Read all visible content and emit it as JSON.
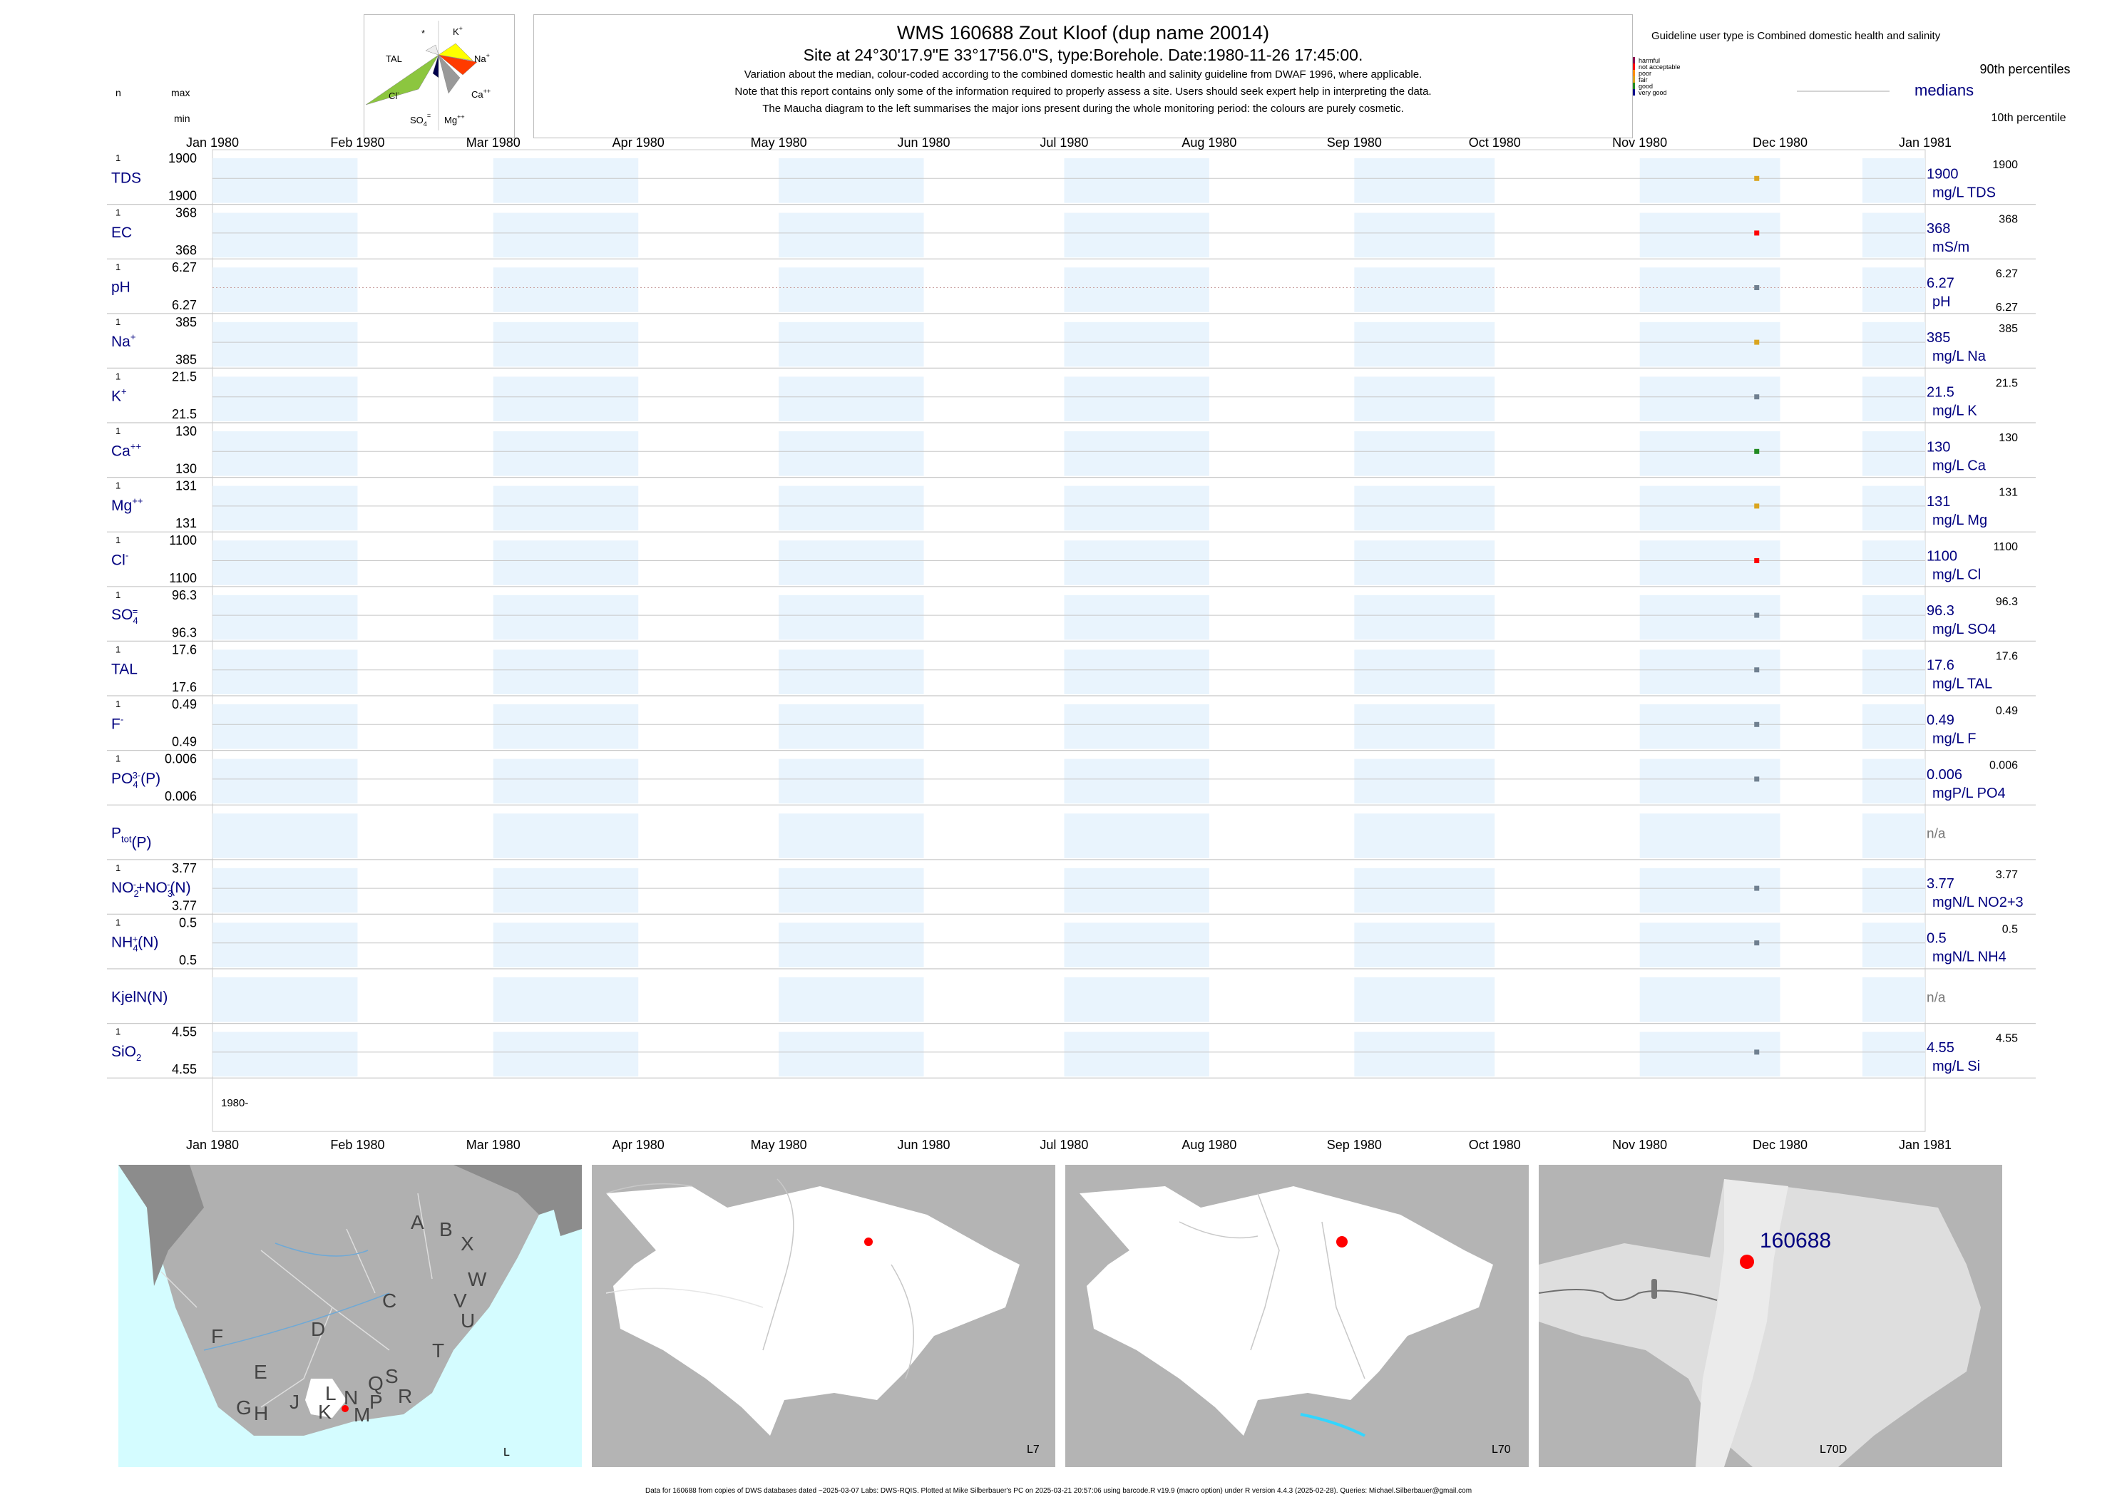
{
  "header": {
    "title": "WMS 160688  Zout Kloof (dup name 20014)",
    "subtitle": "Site at 24°30'17.9\"E 33°17'56.0\"S, type:Borehole. Date:1980-11-26 17:45:00.",
    "notes": [
      "Variation about the median,  colour-coded according to the combined domestic health and salinity guideline from DWAF 1996, where applicable.",
      "Note that this report contains only some of the information required to properly assess a site. Users should seek expert help in interpreting the data.",
      "The Maucha diagram to the left summarises the major ions present during the whole monitoring period: the colours are purely cosmetic."
    ]
  },
  "maucha": {
    "labels": [
      "K+",
      "Na+",
      "Ca++",
      "Mg++",
      "SO4=",
      "Cl-",
      "TAL",
      "*"
    ]
  },
  "col_headers": {
    "n": "n",
    "max": "max",
    "min": "min"
  },
  "legend": {
    "title": "Guideline user type is Combined domestic health and salinity",
    "levels": [
      {
        "name": "harmful",
        "color": "#8b0a50"
      },
      {
        "name": "not acceptable",
        "color": "#ff0000"
      },
      {
        "name": "poor",
        "color": "#ff8c00"
      },
      {
        "name": "fair",
        "color": "#daa520"
      },
      {
        "name": "good",
        "color": "#228b22"
      },
      {
        "name": "very good",
        "color": "#00008b"
      }
    ],
    "p90": "90th percentiles",
    "median": "medians",
    "p10": "10th percentile"
  },
  "x_axis": {
    "months": [
      "Jan 1980",
      "Feb 1980",
      "Mar 1980",
      "Apr 1980",
      "May 1980",
      "Jun 1980",
      "Jul 1980",
      "Aug 1980",
      "Sep 1980",
      "Oct 1980",
      "Nov 1980",
      "Dec 1980",
      "Jan 1981"
    ],
    "year_label": "1980-"
  },
  "chart_data": {
    "type": "scatter",
    "x_range": [
      "1980-01-01",
      "1981-01-01"
    ],
    "sample_date": "1980-11-26",
    "series": [
      {
        "name": "TDS",
        "n": "1",
        "max": "1900",
        "min": "1900",
        "median": "1900",
        "unit": "mg/L TDS",
        "p90": "1900",
        "p10": "",
        "color": "#daa520"
      },
      {
        "name": "EC",
        "n": "1",
        "max": "368",
        "min": "368",
        "median": "368",
        "unit": "mS/m",
        "p90": "368",
        "p10": "",
        "color": "#ff0000"
      },
      {
        "name": "pH",
        "n": "1",
        "max": "6.27",
        "min": "6.27",
        "median": "6.27",
        "unit": "pH",
        "p90": "6.27",
        "p10": "6.27",
        "color": "#708090"
      },
      {
        "name": "Na+",
        "n": "1",
        "max": "385",
        "min": "385",
        "median": "385",
        "unit": "mg/L Na",
        "p90": "385",
        "p10": "",
        "color": "#daa520"
      },
      {
        "name": "K+",
        "n": "1",
        "max": "21.5",
        "min": "21.5",
        "median": "21.5",
        "unit": "mg/L K",
        "p90": "21.5",
        "p10": "",
        "color": "#708090"
      },
      {
        "name": "Ca++",
        "n": "1",
        "max": "130",
        "min": "130",
        "median": "130",
        "unit": "mg/L Ca",
        "p90": "130",
        "p10": "",
        "color": "#228b22"
      },
      {
        "name": "Mg++",
        "n": "1",
        "max": "131",
        "min": "131",
        "median": "131",
        "unit": "mg/L Mg",
        "p90": "131",
        "p10": "",
        "color": "#daa520"
      },
      {
        "name": "Cl-",
        "n": "1",
        "max": "1100",
        "min": "1100",
        "median": "1100",
        "unit": "mg/L Cl",
        "p90": "1100",
        "p10": "",
        "color": "#ff0000"
      },
      {
        "name": "SO4=",
        "n": "1",
        "max": "96.3",
        "min": "96.3",
        "median": "96.3",
        "unit": "mg/L SO4",
        "p90": "96.3",
        "p10": "",
        "color": "#708090"
      },
      {
        "name": "TAL",
        "n": "1",
        "max": "17.6",
        "min": "17.6",
        "median": "17.6",
        "unit": "mg/L TAL",
        "p90": "17.6",
        "p10": "",
        "color": "#708090"
      },
      {
        "name": "F-",
        "n": "1",
        "max": "0.49",
        "min": "0.49",
        "median": "0.49",
        "unit": "mg/L F",
        "p90": "0.49",
        "p10": "",
        "color": "#708090"
      },
      {
        "name": "PO4(3-)(P)",
        "n": "1",
        "max": "0.006",
        "min": "0.006",
        "median": "0.006",
        "unit": "mgP/L PO4",
        "p90": "0.006",
        "p10": "",
        "color": "#708090"
      },
      {
        "name": "Ptot(P)",
        "n": "",
        "max": "",
        "min": "",
        "median": "n/a",
        "unit": "",
        "p90": "",
        "p10": "",
        "color": ""
      },
      {
        "name": "NO2-+NO3-(N)",
        "n": "1",
        "max": "3.77",
        "min": "3.77",
        "median": "3.77",
        "unit": "mgN/L NO2+3",
        "p90": "3.77",
        "p10": "",
        "color": "#708090"
      },
      {
        "name": "NH4+(N)",
        "n": "1",
        "max": "0.5",
        "min": "0.5",
        "median": "0.5",
        "unit": "mgN/L NH4",
        "p90": "0.5",
        "p10": "",
        "color": "#708090"
      },
      {
        "name": "KjelN(N)",
        "n": "",
        "max": "",
        "min": "",
        "median": "n/a",
        "unit": "",
        "p90": "",
        "p10": "",
        "color": ""
      },
      {
        "name": "SiO2",
        "n": "1",
        "max": "4.55",
        "min": "4.55",
        "median": "4.55",
        "unit": "mg/L Si",
        "p90": "4.55",
        "p10": "",
        "color": "#708090"
      }
    ]
  },
  "maps": [
    {
      "label": "L",
      "regions": [
        "A",
        "B",
        "X",
        "C",
        "W",
        "D",
        "V",
        "U",
        "T",
        "F",
        "E",
        "G",
        "H",
        "J",
        "K",
        "L",
        "N",
        "M",
        "P",
        "Q",
        "R",
        "S"
      ]
    },
    {
      "label": "L7"
    },
    {
      "label": "L70"
    },
    {
      "label": "L70D",
      "site_id": "160688"
    }
  ],
  "footer": "Data for 160688 from copies of DWS databases dated ~2025-03-07 Labs: DWS-RQIS. Plotted at Mike Silberbauer's PC on 2025-03-21 20:57:06 using barcode.R v19.9 (macro option) under R version 4.4.3 (2025-02-28). Queries: Michael.Silberbauer@gmail.com"
}
